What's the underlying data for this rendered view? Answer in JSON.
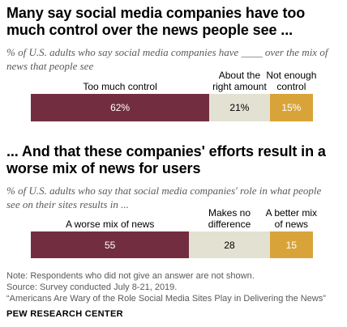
{
  "chart_data": [
    {
      "type": "bar",
      "orientation": "horizontal-stacked",
      "title": "Many say social media companies have too much control over the news people see ...",
      "subtitle": "% of U.S. adults who say social media companies have ____ over the mix of news that people see",
      "categories": [
        "Too much control",
        "About the right amount",
        "Not enough control"
      ],
      "values": [
        62,
        21,
        15
      ],
      "value_labels": [
        "62%",
        "21%",
        "15%"
      ],
      "colors": [
        "#722e40",
        "#e3e1d2",
        "#d8a43a"
      ],
      "label_colors": [
        "#ffffff",
        "#000000",
        "#ffffff"
      ],
      "column_labels": [
        [
          "Too much control"
        ],
        [
          "About the",
          "right amount"
        ],
        [
          "Not enough",
          "control"
        ]
      ],
      "legend": "above-bar"
    },
    {
      "type": "bar",
      "orientation": "horizontal-stacked",
      "title": "... And that these companies' efforts result in a worse mix of news for users",
      "subtitle": "% of U.S. adults who say that social media companies' role in what people see on their sites results in ...",
      "categories": [
        "A worse mix of news",
        "Makes no difference",
        "A better mix of news"
      ],
      "values": [
        55,
        28,
        15
      ],
      "value_labels": [
        "55",
        "28",
        "15"
      ],
      "colors": [
        "#722e40",
        "#e3e1d2",
        "#d8a43a"
      ],
      "label_colors": [
        "#ffffff",
        "#000000",
        "#ffffff"
      ],
      "column_labels": [
        [
          "A worse mix of news"
        ],
        [
          "Makes no",
          "difference"
        ],
        [
          "A better mix",
          "of news"
        ]
      ],
      "legend": "above-bar"
    }
  ],
  "notes": {
    "note": "Note: Respondents who did not give an answer are not shown.",
    "source": "Source: Survey conducted July 8-21, 2019.",
    "report": "“Americans Are Wary of the Role Social Media Sites Play in Delivering the News”",
    "org": "PEW RESEARCH CENTER"
  }
}
